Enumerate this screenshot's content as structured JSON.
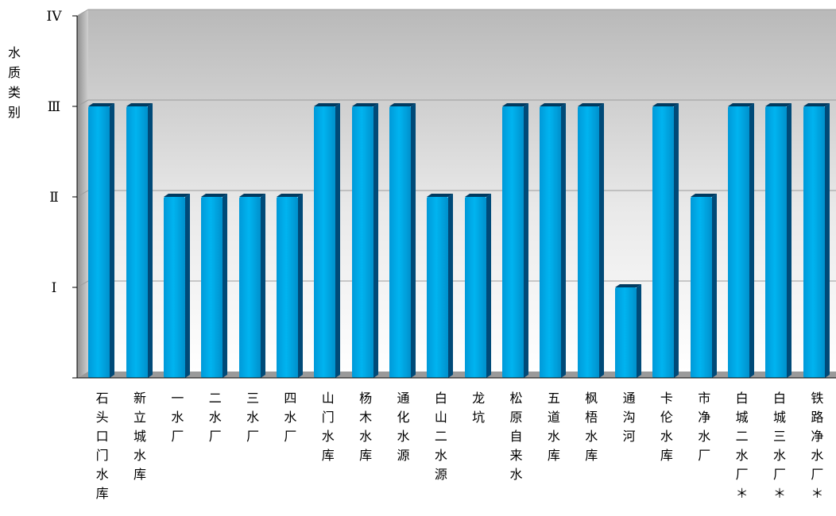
{
  "chart_data": {
    "type": "bar",
    "title": "",
    "xlabel": "",
    "ylabel": "水质类别",
    "y_tick_labels": [
      "Ⅰ",
      "Ⅱ",
      "Ⅲ",
      "IV"
    ],
    "ylim": [
      0,
      4
    ],
    "grid": true,
    "categories": [
      "石头口门水库",
      "新立城水库",
      "一水厂",
      "二水厂",
      "三水厂",
      "四水厂",
      "山门水库",
      "杨木水库",
      "通化水源",
      "白山二水源",
      "龙坑",
      "松原自来水",
      "五道水库",
      "枫梧水库",
      "通沟河",
      "卡伦水库",
      "市净水厂",
      "白城二水厂＊",
      "白城三水厂＊",
      "铁路净水厂＊"
    ],
    "values": [
      3,
      3,
      2,
      2,
      2,
      2,
      3,
      3,
      3,
      2,
      2,
      3,
      3,
      3,
      1,
      3,
      2,
      3,
      3,
      3
    ],
    "colors": {
      "bar": "#00a8e8",
      "bar_side": "#004a78",
      "bar_top": "#003a60",
      "wall_top": "#c8c8c8",
      "wall_bottom": "#f4f4f4",
      "axis": "#000000"
    }
  }
}
